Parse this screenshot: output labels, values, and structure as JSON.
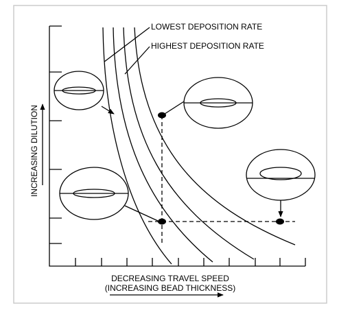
{
  "labels": {
    "lowest": "LOWEST DEPOSITION RATE",
    "highest": "HIGHEST DEPOSITION RATE"
  },
  "axes": {
    "y_label": "INCREASING DILUTION",
    "x_label": "DECREASING TRAVEL SPEED",
    "x_sublabel": "(INCREASING BEAD THICKNESS)"
  }
}
